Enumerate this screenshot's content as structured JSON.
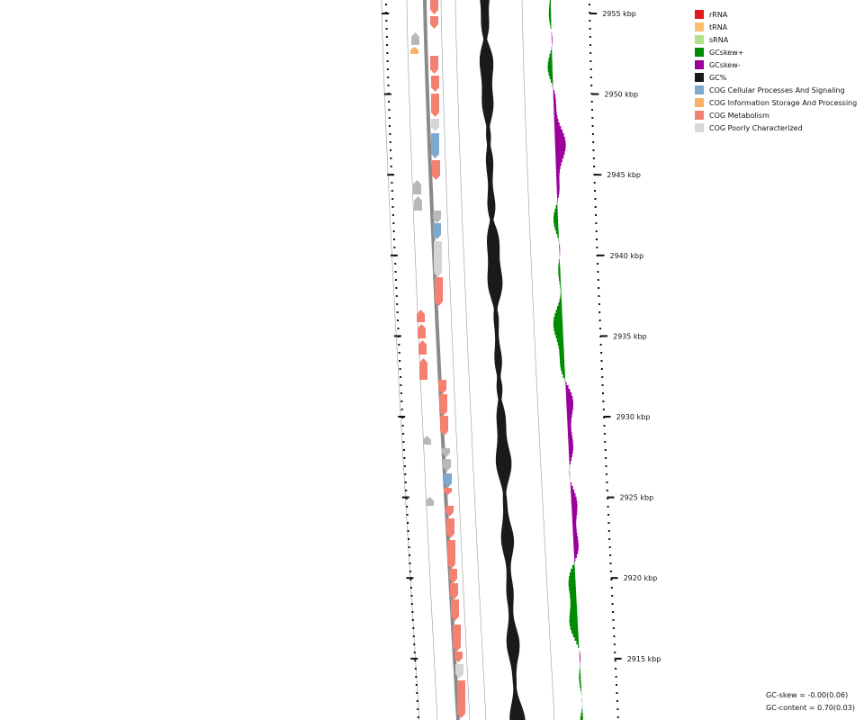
{
  "legend": {
    "items": [
      {
        "label": "rRNA",
        "color": "#e31a1c"
      },
      {
        "label": "tRNA",
        "color": "#fdbf6f"
      },
      {
        "label": "sRNA",
        "color": "#b2df8a"
      },
      {
        "label": "GCskew+",
        "color": "#008c00"
      },
      {
        "label": "GCskew-",
        "color": "#9b009b"
      },
      {
        "label": "GC%",
        "color": "#1a1a1a"
      },
      {
        "label": "COG Cellular Processes And Signaling",
        "color": "#7ea9cf"
      },
      {
        "label": "COG Information Storage And Processing",
        "color": "#f7b267"
      },
      {
        "label": "COG Metabolism",
        "color": "#f4806f"
      },
      {
        "label": "COG Poorly Characterized",
        "color": "#d9d9d9"
      }
    ]
  },
  "axis": {
    "tick_labels": [
      "2955 kbp",
      "2950 kbp",
      "2945 kbp",
      "2940 kbp",
      "2935 kbp",
      "2930 kbp",
      "2925 kbp",
      "2920 kbp",
      "2915 kbp"
    ]
  },
  "stats": {
    "gc_skew": "GC-skew = -0.00(0.06)",
    "gc_content": "GC-content = 0.70(0.03)"
  }
}
